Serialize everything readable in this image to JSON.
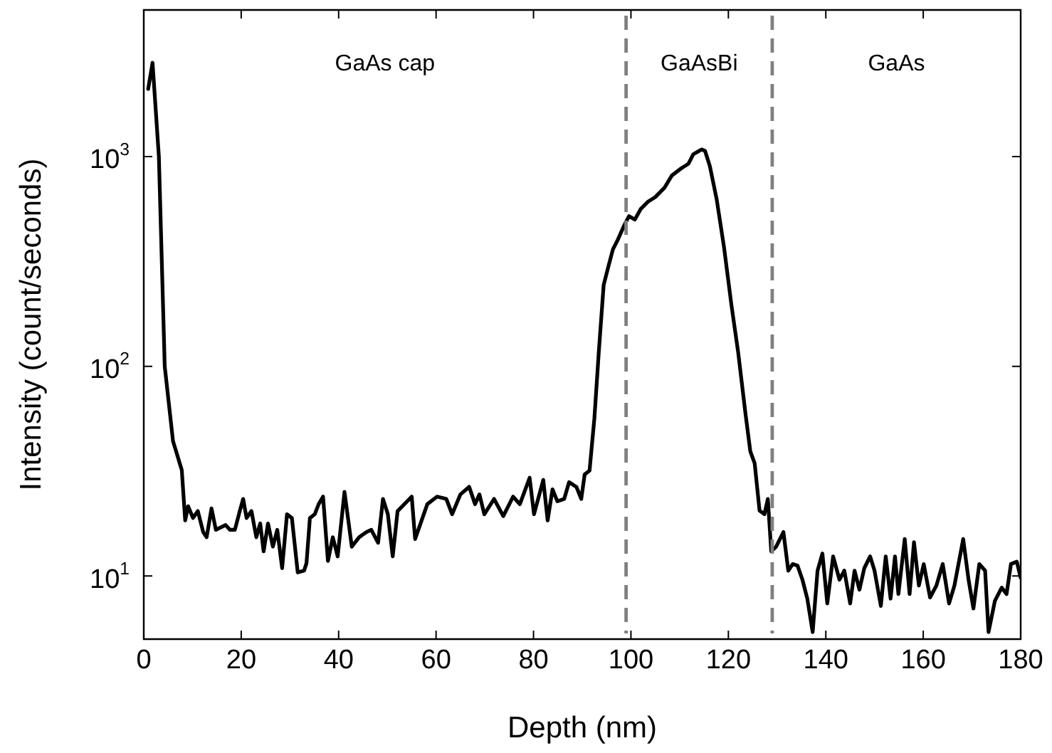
{
  "chart_data": {
    "type": "line",
    "xlabel": "Depth (nm)",
    "ylabel": "Intensity (count/seconds)",
    "log": "y",
    "grid": false,
    "legend": false,
    "marker": "none",
    "line_style": "solid",
    "xlim": [
      0,
      180
    ],
    "xticks": [
      0,
      20,
      40,
      60,
      80,
      100,
      120,
      140,
      160,
      180
    ],
    "ylim": [
      5,
      5000
    ],
    "yticks": [
      {
        "value": 10,
        "label": "10$^{1}$"
      },
      {
        "value": 100,
        "label": "10$^{2}$"
      },
      {
        "value": 1000,
        "label": "10$^{3}$"
      }
    ],
    "ref_lines": [
      {
        "axis": "x",
        "value": 99,
        "color": "#808080",
        "line_style": "dashed"
      },
      {
        "axis": "x",
        "value": 129,
        "color": "#808080",
        "line_style": "dashed"
      }
    ],
    "annotations": [
      "GaAs cap",
      "GaAsBi",
      "GaAs"
    ],
    "series": [
      {
        "color": "#000000",
        "x": [
          0.9,
          1.8,
          3.1,
          4.3,
          6.0,
          7.8,
          8.5,
          9.1,
          10.1,
          11.1,
          12.2,
          12.9,
          13.9,
          14.8,
          16.8,
          17.7,
          18.7,
          19.7,
          20.4,
          21.1,
          22.1,
          23.1,
          23.9,
          24.6,
          25.5,
          26.5,
          27.4,
          28.4,
          29.4,
          30.4,
          31.6,
          32.9,
          33.4,
          34.1,
          35.1,
          35.9,
          36.8,
          37.8,
          38.8,
          39.8,
          41.2,
          42.7,
          44.2,
          45.7,
          46.7,
          48.1,
          49.1,
          50.1,
          51.1,
          52.1,
          55.0,
          55.7,
          57.2,
          58.2,
          60.2,
          62.1,
          63.3,
          65.0,
          66.8,
          68.0,
          68.9,
          69.9,
          71.9,
          73.8,
          75.8,
          77.2,
          79.2,
          80.1,
          82.0,
          82.9,
          83.9,
          84.9,
          86.3,
          87.3,
          88.8,
          89.8,
          90.5,
          91.5,
          92.5,
          93.4,
          94.4,
          95.4,
          96.3,
          97.3,
          98.6,
          99.6,
          100.8,
          102.0,
          103.5,
          105.0,
          106.9,
          108.4,
          110.3,
          111.8,
          112.8,
          114.5,
          115.2,
          116.2,
          117.6,
          119.1,
          120.6,
          122.0,
          123.5,
          124.5,
          125.4,
          126.4,
          127.4,
          128.1,
          128.8,
          129.8,
          131.3,
          132.3,
          133.2,
          134.2,
          135.2,
          136.2,
          137.3,
          138.3,
          139.3,
          140.3,
          141.5,
          142.8,
          143.8,
          145.0,
          145.9,
          146.9,
          147.9,
          149.1,
          150.0,
          151.3,
          152.3,
          153.3,
          154.2,
          154.9,
          156.2,
          157.2,
          158.1,
          159.1,
          160.1,
          161.4,
          162.7,
          164.0,
          165.3,
          166.4,
          168.2,
          169.3,
          170.3,
          171.5,
          172.7,
          173.4,
          174.7,
          176.1,
          177.1,
          178.0,
          179.2,
          180.0
        ],
        "values": [
          2100,
          2800,
          1000,
          100,
          44,
          32,
          18.4,
          21.5,
          18.9,
          20.4,
          16.2,
          15.3,
          21,
          16.6,
          17.5,
          16.6,
          16.6,
          20.4,
          23.3,
          18.9,
          20.4,
          15.3,
          17.8,
          13.1,
          17.8,
          13.8,
          16.6,
          10.9,
          19.7,
          18.9,
          10.4,
          10.6,
          11.5,
          18.9,
          19.7,
          22,
          23.9,
          11.8,
          15.3,
          12.4,
          25.2,
          13.8,
          15.3,
          16.2,
          16.6,
          14.4,
          23.3,
          19.7,
          12.4,
          20.4,
          23.9,
          15.0,
          18.9,
          22.0,
          23.9,
          23.3,
          19.7,
          24.5,
          26.6,
          22.0,
          24.5,
          19.7,
          23.3,
          19.3,
          23.9,
          22,
          29.4,
          19.7,
          28.7,
          18.4,
          25.9,
          22.7,
          23.3,
          28,
          26.6,
          23.3,
          30.5,
          31.8,
          56.6,
          117,
          244,
          301,
          361,
          401,
          469,
          520,
          501,
          562,
          609,
          641,
          711,
          812,
          878,
          924,
          1026,
          1081,
          1065,
          900,
          625,
          370,
          198,
          117,
          59.7,
          39.3,
          34.4,
          20.5,
          19.7,
          23.3,
          13.1,
          13.8,
          16.2,
          10.6,
          11.4,
          11.2,
          9.6,
          7.8,
          5.4,
          10.6,
          12.8,
          7.4,
          12.4,
          9.6,
          10.6,
          7.4,
          10.6,
          8.6,
          10.9,
          12.4,
          10.6,
          7.2,
          12.4,
          7.8,
          12.4,
          8.2,
          15,
          8.2,
          14.5,
          9.0,
          11.4,
          7.9,
          9,
          11.4,
          7.4,
          9,
          15,
          9.6,
          7.0,
          11.4,
          10.6,
          5.4,
          7.6,
          8.8,
          8.2,
          11.4,
          11.7,
          9.8
        ]
      }
    ]
  }
}
